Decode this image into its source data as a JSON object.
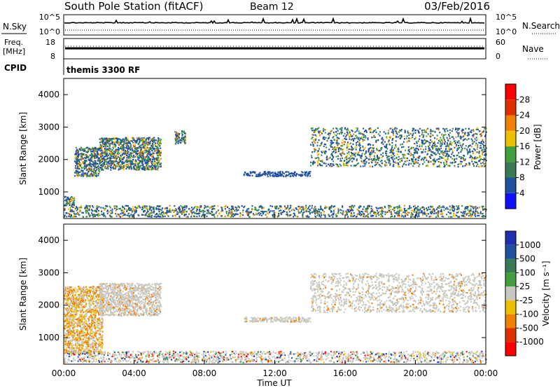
{
  "header": {
    "station": "South Pole Station (fitACF)",
    "beam": "Beam 12",
    "date": "03/Feb/2016"
  },
  "strips": {
    "nsky": {
      "label": "N.Sky",
      "ticks": [
        "10^5",
        "10^0"
      ]
    },
    "nsearch": {
      "label": "N.Search",
      "ticks": [
        "10^5",
        "10^0"
      ]
    },
    "freq": {
      "label_top": "Freq.",
      "label_unit": "[MHz]",
      "ticks": [
        "18",
        "8"
      ]
    },
    "nave": {
      "label": "Nave",
      "ticks": [
        "60",
        "0"
      ]
    },
    "cpid": {
      "label": "CPID",
      "value": "themis 3300 RF"
    }
  },
  "axes": {
    "ylabel": "Slant Range [km]",
    "xlabel": "Time UT",
    "yticks": [
      "1000",
      "2000",
      "3000",
      "4000"
    ],
    "xticks": [
      "00:00",
      "04:00",
      "08:00",
      "12:00",
      "16:00",
      "20:00",
      "00:00"
    ]
  },
  "power_bar": {
    "label": "Power [dB]",
    "ticks": [
      "4",
      "8",
      "12",
      "16",
      "20",
      "24",
      "28"
    ],
    "colors": [
      "#1010ff",
      "#2050a0",
      "#3a7a55",
      "#40a040",
      "#f0c000",
      "#f08000",
      "#e03000",
      "#ff0000"
    ]
  },
  "velocity_bar": {
    "label": "Velocity [m s⁻¹]",
    "ticks": [
      "1000",
      "500",
      "100",
      "25",
      "-25",
      "-100",
      "-500",
      "-1000"
    ],
    "colors": [
      "#1f2fb0",
      "#2050a0",
      "#3a7a55",
      "#40a040",
      "#c8c8c0",
      "#f0c000",
      "#f08000",
      "#e03000",
      "#ff0000"
    ]
  },
  "chart_data": [
    {
      "type": "heatmap",
      "panel": "power",
      "x_range_hours": [
        0,
        24
      ],
      "y_range_km": [
        180,
        4500
      ],
      "scatter_regions": [
        {
          "t": [
            0.0,
            0.6
          ],
          "r": [
            600,
            900
          ],
          "level": "mixed"
        },
        {
          "t": [
            0.6,
            2.0
          ],
          "r": [
            1500,
            2400
          ],
          "level": "mixed"
        },
        {
          "t": [
            2.0,
            5.5
          ],
          "r": [
            1700,
            2700
          ],
          "level": "mixed"
        },
        {
          "t": [
            6.3,
            6.9
          ],
          "r": [
            2500,
            2900
          ],
          "level": "mixed"
        },
        {
          "t": [
            10.2,
            14.0
          ],
          "r": [
            1500,
            1650
          ],
          "level": "low"
        },
        {
          "t": [
            14.0,
            24.0
          ],
          "r": [
            1800,
            3000
          ],
          "level": "mixed"
        },
        {
          "t": [
            0.0,
            24.0
          ],
          "r": [
            250,
            600
          ],
          "level": "mixed"
        }
      ]
    },
    {
      "type": "heatmap",
      "panel": "velocity",
      "x_range_hours": [
        0,
        24
      ],
      "y_range_km": [
        180,
        4500
      ],
      "scatter_regions": [
        {
          "t": [
            0.0,
            2.2
          ],
          "r": [
            500,
            2600
          ],
          "level": "away"
        },
        {
          "t": [
            2.0,
            5.5
          ],
          "r": [
            1700,
            2700
          ],
          "level": "ground"
        },
        {
          "t": [
            14.0,
            24.0
          ],
          "r": [
            1800,
            3000
          ],
          "level": "ground"
        },
        {
          "t": [
            10.2,
            14.0
          ],
          "r": [
            1500,
            1650
          ],
          "level": "ground"
        },
        {
          "t": [
            0.0,
            24.0
          ],
          "r": [
            250,
            600
          ],
          "level": "mixed"
        }
      ]
    }
  ]
}
